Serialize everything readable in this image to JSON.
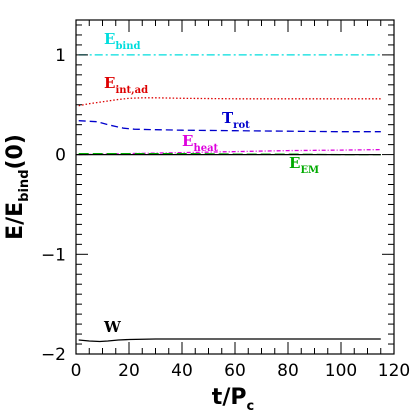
{
  "chart_data": {
    "type": "line",
    "xlabel": {
      "main": "t/P",
      "sub": "c"
    },
    "ylabel": {
      "main": "E/E",
      "sub": "bind",
      "tail": "(0)"
    },
    "xlim": [
      0,
      120
    ],
    "ylim": [
      -2,
      1.35
    ],
    "xticks_major": [
      0,
      20,
      40,
      60,
      80,
      100,
      120
    ],
    "xtick_labels": [
      "0",
      "20",
      "40",
      "60",
      "80",
      "100",
      "120"
    ],
    "yticks_major": [
      -2,
      -1,
      0,
      1
    ],
    "ytick_labels": [
      "−2",
      "−1",
      "0",
      "1"
    ],
    "grid": false,
    "series": [
      {
        "name": "E",
        "sub": "bind",
        "color": "#00dddd",
        "dash": "8 3 2 3",
        "x": [
          1,
          115
        ],
        "y": [
          1.0,
          1.0
        ]
      },
      {
        "name": "E",
        "sub": "int,ad",
        "color": "#dd0000",
        "dash": "1.5 2",
        "x": [
          1,
          5,
          10,
          15,
          20,
          25,
          30,
          40,
          60,
          80,
          100,
          115
        ],
        "y": [
          0.49,
          0.51,
          0.53,
          0.55,
          0.565,
          0.57,
          0.57,
          0.565,
          0.56,
          0.56,
          0.56,
          0.56
        ]
      },
      {
        "name": "T",
        "sub": "rot",
        "color": "#0000cc",
        "dash": "7 4",
        "x": [
          1,
          8,
          12,
          18,
          22,
          30,
          40,
          60,
          80,
          100,
          115
        ],
        "y": [
          0.34,
          0.33,
          0.3,
          0.265,
          0.255,
          0.25,
          0.245,
          0.24,
          0.235,
          0.23,
          0.23
        ],
        "offset": 0
      },
      {
        "name": "E",
        "sub": "heat",
        "color": "#dd00dd",
        "dash": "4 2 1 2",
        "x": [
          1,
          20,
          40,
          60,
          80,
          100,
          115
        ],
        "y": [
          0.0,
          0.01,
          0.02,
          0.03,
          0.04,
          0.045,
          0.05
        ]
      },
      {
        "name": "E",
        "sub": "EM",
        "color": "#00aa00",
        "dash": "10 4",
        "x": [
          1,
          20,
          40,
          60,
          80,
          100,
          115
        ],
        "y": [
          0.01,
          0.01,
          0.01,
          0.005,
          0.005,
          0.0,
          0.0
        ]
      },
      {
        "name": "W",
        "sub": "",
        "color": "#000000",
        "dash": "",
        "x": [
          1,
          5,
          9,
          12,
          16,
          20,
          30,
          40,
          60,
          80,
          100,
          115
        ],
        "y": [
          -1.86,
          -1.87,
          -1.875,
          -1.87,
          -1.86,
          -1.855,
          -1.85,
          -1.85,
          -1.85,
          -1.85,
          -1.85,
          -1.85
        ]
      },
      {
        "name": "",
        "sub": "",
        "color": "#000000",
        "dash": "",
        "x": [
          0,
          115
        ],
        "y": [
          0.0,
          0.0
        ]
      }
    ]
  }
}
